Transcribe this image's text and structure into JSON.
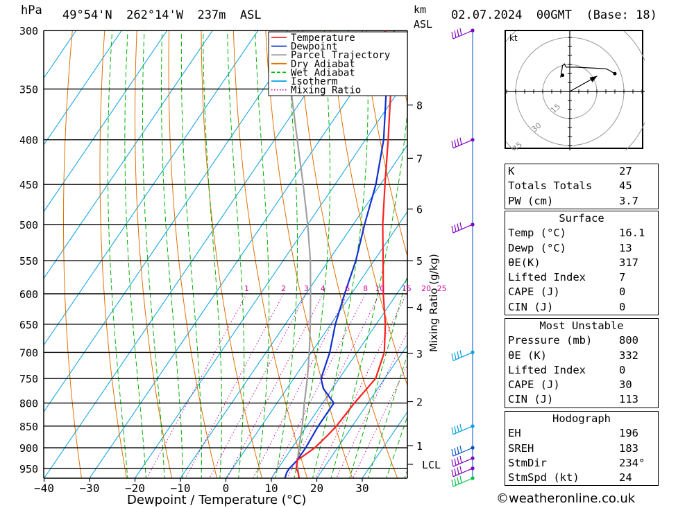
{
  "header": {
    "hpa_label": "hPa",
    "location": "49°54'N  262°14'W  237m  ASL",
    "km_label": "km",
    "asl_label": "ASL",
    "datetime": "02.07.2024  00GMT  (Base: 18)"
  },
  "chart_data": {
    "type": "line",
    "title": "",
    "xlabel": "Dewpoint / Temperature (°C)",
    "ylabel": "hPa",
    "secondary_ylabel": "Mixing Ratio (g/kg)",
    "xlim": [
      -40,
      40
    ],
    "ylim": [
      975,
      300
    ],
    "log_y": true,
    "x_ticks": [
      "−40",
      "−30",
      "−20",
      "−10",
      "0",
      "10",
      "20",
      "30"
    ],
    "x_tick_values": [
      -40,
      -30,
      -20,
      -10,
      0,
      10,
      20,
      30
    ],
    "pressure_levels": [
      300,
      350,
      400,
      450,
      500,
      550,
      600,
      650,
      700,
      750,
      800,
      850,
      900,
      950
    ],
    "km_ticks": [
      {
        "label": "1",
        "p": 895
      },
      {
        "label": "2",
        "p": 797
      },
      {
        "label": "3",
        "p": 702
      },
      {
        "label": "4",
        "p": 622
      },
      {
        "label": "5",
        "p": 550
      },
      {
        "label": "6",
        "p": 480
      },
      {
        "label": "7",
        "p": 420
      },
      {
        "label": "8",
        "p": 365
      }
    ],
    "lcl": {
      "label": "LCL",
      "p": 940
    },
    "mixing_ratio_labels": [
      {
        "label": "1",
        "value": 1
      },
      {
        "label": "2",
        "value": 2
      },
      {
        "label": "3",
        "value": 3
      },
      {
        "label": "4",
        "value": 4
      },
      {
        "label": "6",
        "value": 6
      },
      {
        "label": "8",
        "value": 8
      },
      {
        "label": "10",
        "value": 10
      },
      {
        "label": "15",
        "value": 15
      },
      {
        "label": "20",
        "value": 20
      },
      {
        "label": "25",
        "value": 25
      }
    ],
    "legend": {
      "placement": "top",
      "entries": [
        {
          "name": "Temperature",
          "color": "#ff2020",
          "style": "solid"
        },
        {
          "name": "Dewpoint",
          "color": "#1030d0",
          "style": "solid"
        },
        {
          "name": "Parcel Trajectory",
          "color": "#a0a0a0",
          "style": "solid"
        },
        {
          "name": "Dry Adiabat",
          "color": "#e07000",
          "style": "solid"
        },
        {
          "name": "Wet Adiabat",
          "color": "#00b000",
          "style": "dashed"
        },
        {
          "name": "Isotherm",
          "color": "#00a0e0",
          "style": "solid"
        },
        {
          "name": "Mixing Ratio",
          "color": "#d000a0",
          "style": "dotted"
        }
      ]
    },
    "series": [
      {
        "name": "Temperature",
        "color": "#ff2020",
        "points": [
          [
            975,
            16.1
          ],
          [
            960,
            15
          ],
          [
            950,
            14
          ],
          [
            930,
            13
          ],
          [
            900,
            15
          ],
          [
            870,
            16
          ],
          [
            850,
            16.5
          ],
          [
            800,
            17
          ],
          [
            750,
            18
          ],
          [
            700,
            16
          ],
          [
            650,
            12
          ],
          [
            600,
            7
          ],
          [
            550,
            2
          ],
          [
            500,
            -3.5
          ],
          [
            450,
            -9
          ],
          [
            400,
            -15
          ],
          [
            350,
            -22
          ],
          [
            300,
            -32
          ]
        ]
      },
      {
        "name": "Dewpoint",
        "color": "#1030d0",
        "points": [
          [
            975,
            13
          ],
          [
            960,
            12.5
          ],
          [
            950,
            12.5
          ],
          [
            930,
            13
          ],
          [
            900,
            13
          ],
          [
            850,
            12.5
          ],
          [
            800,
            12.5
          ],
          [
            770,
            8
          ],
          [
            750,
            6
          ],
          [
            700,
            4
          ],
          [
            650,
            1
          ],
          [
            600,
            -1.5
          ],
          [
            550,
            -4
          ],
          [
            500,
            -7.5
          ],
          [
            450,
            -11
          ],
          [
            400,
            -16
          ],
          [
            350,
            -23
          ],
          [
            300,
            -32
          ]
        ]
      },
      {
        "name": "Parcel Trajectory",
        "color": "#a0a0a0",
        "points": [
          [
            975,
            16.1
          ],
          [
            940,
            13.6
          ],
          [
            900,
            11.5
          ],
          [
            850,
            9
          ],
          [
            800,
            6
          ],
          [
            750,
            3
          ],
          [
            700,
            -0.5
          ],
          [
            650,
            -4.5
          ],
          [
            600,
            -9
          ],
          [
            550,
            -14
          ],
          [
            500,
            -20
          ],
          [
            450,
            -27
          ],
          [
            400,
            -35
          ],
          [
            350,
            -44
          ],
          [
            300,
            -53
          ]
        ]
      }
    ],
    "wind_profile": {
      "line_color": "#0050c0",
      "barbs": [
        {
          "p": 300,
          "color": "#8000c0"
        },
        {
          "p": 400,
          "color": "#8000c0"
        },
        {
          "p": 500,
          "color": "#8000c0"
        },
        {
          "p": 700,
          "color": "#00a0e0"
        },
        {
          "p": 850,
          "color": "#00a0e0"
        },
        {
          "p": 900,
          "color": "#0050c0"
        },
        {
          "p": 925,
          "color": "#8000c0"
        },
        {
          "p": 950,
          "color": "#8000c0"
        },
        {
          "p": 975,
          "color": "#00c040"
        }
      ]
    }
  },
  "hodograph": {
    "unit_label": "kt",
    "ring_labels": [
      "15",
      "30",
      "45"
    ],
    "trace": [
      [
        -4,
        10
      ],
      [
        -5,
        9
      ],
      [
        -4,
        16
      ],
      [
        -3,
        17
      ],
      [
        -2,
        15
      ],
      [
        3,
        15
      ],
      [
        20,
        14
      ],
      [
        22,
        13
      ],
      [
        25,
        11
      ]
    ],
    "storm_vector": {
      "dir_deg": 234,
      "speed_kt": 24
    }
  },
  "indices": {
    "general": [
      {
        "label": "K",
        "value": "27"
      },
      {
        "label": "Totals Totals",
        "value": "45"
      },
      {
        "label": "PW (cm)",
        "value": "3.7"
      }
    ],
    "surface_title": "Surface",
    "surface": [
      {
        "label": "Temp (°C)",
        "value": "16.1"
      },
      {
        "label": "Dewp (°C)",
        "value": "13"
      },
      {
        "label": "θE(K)",
        "value": "317"
      },
      {
        "label": "Lifted Index",
        "value": "7"
      },
      {
        "label": "CAPE (J)",
        "value": "0"
      },
      {
        "label": "CIN (J)",
        "value": "0"
      }
    ],
    "mu_title": "Most Unstable",
    "mu": [
      {
        "label": "Pressure (mb)",
        "value": "800"
      },
      {
        "label": "θE (K)",
        "value": "332"
      },
      {
        "label": "Lifted Index",
        "value": "0"
      },
      {
        "label": "CAPE (J)",
        "value": "30"
      },
      {
        "label": "CIN (J)",
        "value": "113"
      }
    ],
    "hodo_title": "Hodograph",
    "hodo": [
      {
        "label": "EH",
        "value": "196"
      },
      {
        "label": "SREH",
        "value": "183"
      },
      {
        "label": "StmDir",
        "value": "234°"
      },
      {
        "label": "StmSpd (kt)",
        "value": "24"
      }
    ]
  },
  "credit": "©weatheronline.co.uk"
}
